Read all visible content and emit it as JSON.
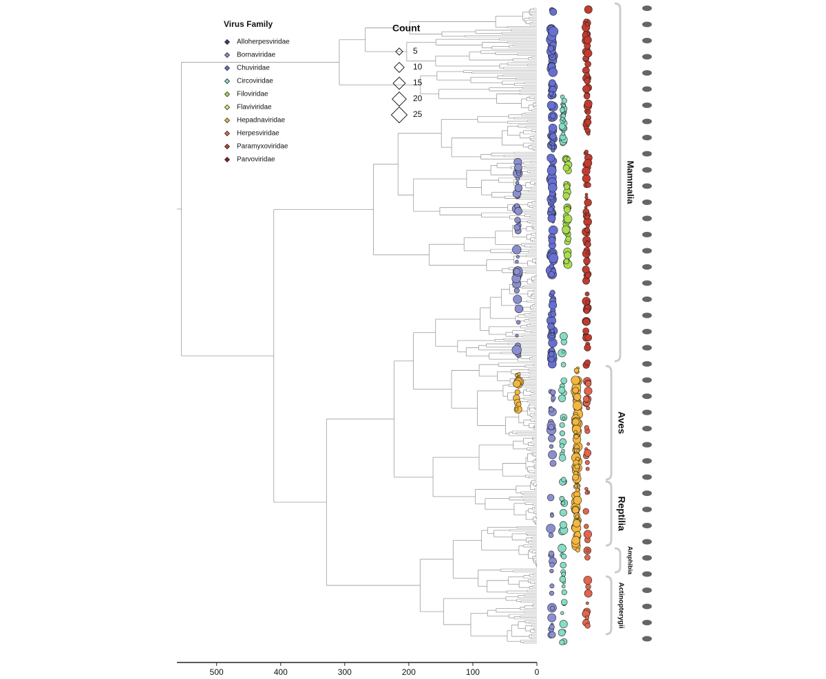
{
  "legend": {
    "title": "Virus Family",
    "families": [
      {
        "name": "Alloherpesviridae",
        "color": "#3b3d6e"
      },
      {
        "name": "Bornaviridae",
        "color": "#8a8fd0"
      },
      {
        "name": "Chuviridae",
        "color": "#6670d2"
      },
      {
        "name": "Circoviridae",
        "color": "#86dcc4"
      },
      {
        "name": "Filoviridae",
        "color": "#a9dc4e"
      },
      {
        "name": "Flaviviridae",
        "color": "#dfe86c"
      },
      {
        "name": "Hepadnaviridae",
        "color": "#f3b63f"
      },
      {
        "name": "Herpesviridae",
        "color": "#e2654c"
      },
      {
        "name": "Paramyxoviridae",
        "color": "#c23b2e"
      },
      {
        "name": "Parvoviridae",
        "color": "#8c1f1f"
      }
    ]
  },
  "count_legend": {
    "title": "Count",
    "values": [
      5,
      10,
      15,
      20,
      25
    ]
  },
  "clades": [
    "Mammalia",
    "Aves",
    "Reptilia",
    "Amphibia",
    "Actinopterygii"
  ],
  "axis": {
    "xlim": [
      562,
      0
    ],
    "xticks": [
      500,
      400,
      300,
      200,
      100,
      0
    ]
  }
}
